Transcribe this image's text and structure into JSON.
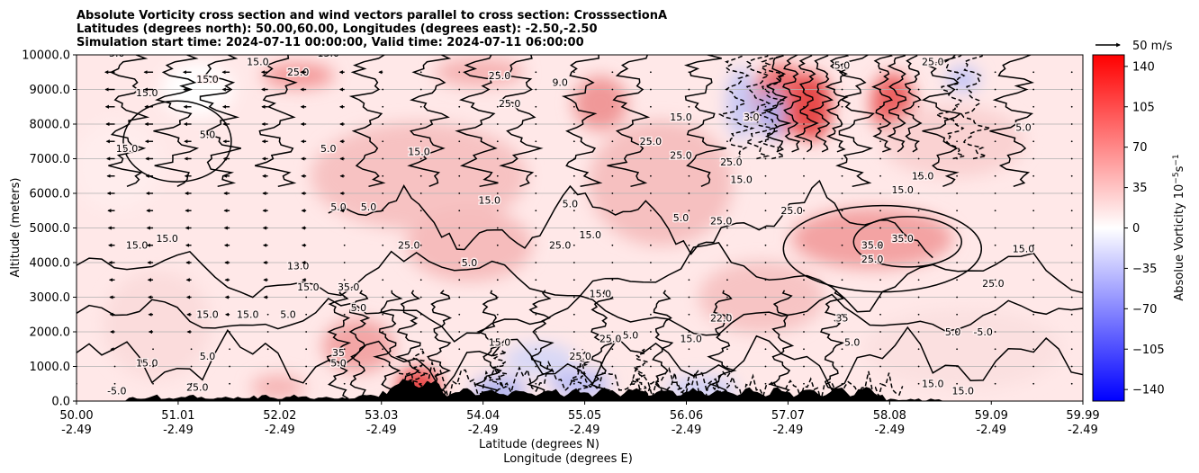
{
  "chart_data": {
    "type": "heatmap",
    "title_lines": [
      "Absolute Vorticity cross section and wind vectors parallel to cross section: CrosssectionA",
      "Latitudes (degrees north): 50.00,60.00, Longitudes (degrees east): -2.50,-2.50",
      "Simulation start time: 2024-07-11 00:00:00, Valid time: 2024-07-11 06:00:00"
    ],
    "xlabel_lines": [
      "Latitude (degrees N)",
      "Longitude (degrees E)"
    ],
    "ylabel": "Altitude (meters)",
    "x_ticks": [
      {
        "lat": "50.00",
        "lon": "-2.49"
      },
      {
        "lat": "51.01",
        "lon": "-2.49"
      },
      {
        "lat": "52.02",
        "lon": "-2.49"
      },
      {
        "lat": "53.03",
        "lon": "-2.49"
      },
      {
        "lat": "54.04",
        "lon": "-2.49"
      },
      {
        "lat": "55.05",
        "lon": "-2.49"
      },
      {
        "lat": "56.06",
        "lon": "-2.49"
      },
      {
        "lat": "57.07",
        "lon": "-2.49"
      },
      {
        "lat": "58.08",
        "lon": "-2.49"
      },
      {
        "lat": "59.09",
        "lon": "-2.49"
      },
      {
        "lat": "59.99",
        "lon": "-2.49"
      }
    ],
    "xlim": [
      50.0,
      59.99
    ],
    "y_ticks": [
      "0.0",
      "1000.0",
      "2000.0",
      "3000.0",
      "4000.0",
      "5000.0",
      "6000.0",
      "7000.0",
      "8000.0",
      "9000.0",
      "10000.0"
    ],
    "ylim": [
      0,
      10000
    ],
    "grid": "horizontal",
    "colorbar": {
      "label": "Absolue Vorticity 10",
      "label_exp": "−5",
      "label_unit": "s",
      "label_unit_exp": "−1",
      "ticks": [
        "140",
        "105",
        "70",
        "35",
        "0",
        "−35",
        "−70",
        "−105",
        "−140"
      ],
      "range": [
        -150,
        150
      ],
      "colors": {
        "low": "#0000ff",
        "mid": "#ffffff",
        "high": "#ff0000"
      }
    },
    "quiver_key": "50 m/s",
    "contour_labels": [
      {
        "text": "5.0",
        "x": 50.4,
        "y": 9950
      },
      {
        "text": "15.0",
        "x": 51.3,
        "y": 9200
      },
      {
        "text": "15.0",
        "x": 51.8,
        "y": 9700
      },
      {
        "text": "25.0",
        "x": 52.2,
        "y": 9400
      },
      {
        "text": "15.0",
        "x": 52.5,
        "y": 9950
      },
      {
        "text": "15.0",
        "x": 50.7,
        "y": 8800
      },
      {
        "text": "5.0",
        "x": 51.3,
        "y": 7600
      },
      {
        "text": "15.0",
        "x": 50.5,
        "y": 7200
      },
      {
        "text": "5.0",
        "x": 52.5,
        "y": 7200
      },
      {
        "text": "15.0",
        "x": 53.4,
        "y": 7100
      },
      {
        "text": "5.0",
        "x": 52.6,
        "y": 5500
      },
      {
        "text": "5.0",
        "x": 52.9,
        "y": 5500
      },
      {
        "text": "15.0",
        "x": 50.6,
        "y": 4400
      },
      {
        "text": "15.0",
        "x": 50.9,
        "y": 4600
      },
      {
        "text": "13.0",
        "x": 52.2,
        "y": 3800
      },
      {
        "text": "15.0",
        "x": 52.3,
        "y": 3200
      },
      {
        "text": "35.0",
        "x": 52.7,
        "y": 3200
      },
      {
        "text": "25.0",
        "x": 53.3,
        "y": 4400
      },
      {
        "text": "5.0",
        "x": 52.8,
        "y": 2600
      },
      {
        "text": "15.0",
        "x": 51.7,
        "y": 2400
      },
      {
        "text": "15.0",
        "x": 51.3,
        "y": 2400
      },
      {
        "text": "5.0",
        "x": 52.1,
        "y": 2400
      },
      {
        "text": "15.0",
        "x": 50.7,
        "y": 1000
      },
      {
        "text": "5.0",
        "x": 51.3,
        "y": 1200
      },
      {
        "text": "5.0",
        "x": 52.6,
        "y": 1000
      },
      {
        "text": "-5.0",
        "x": 50.4,
        "y": 200
      },
      {
        "text": "25.0",
        "x": 51.2,
        "y": 300
      },
      {
        "text": "35",
        "x": 52.6,
        "y": 1300
      },
      {
        "text": "9.0",
        "x": 54.8,
        "y": 9100
      },
      {
        "text": "25.0",
        "x": 54.3,
        "y": 8500
      },
      {
        "text": "25.0",
        "x": 54.2,
        "y": 9300
      },
      {
        "text": "15.0",
        "x": 56.0,
        "y": 8100
      },
      {
        "text": "25.0",
        "x": 56.0,
        "y": 7000
      },
      {
        "text": "15.0",
        "x": 54.1,
        "y": 5700
      },
      {
        "text": "5.0",
        "x": 54.9,
        "y": 5600
      },
      {
        "text": "15.0",
        "x": 55.1,
        "y": 4700
      },
      {
        "text": "25.0",
        "x": 54.8,
        "y": 4400
      },
      {
        "text": "5.0",
        "x": 53.9,
        "y": 3900
      },
      {
        "text": "15.0",
        "x": 55.2,
        "y": 3000
      },
      {
        "text": "5.0",
        "x": 55.5,
        "y": 1800
      },
      {
        "text": "15.0",
        "x": 54.2,
        "y": 1600
      },
      {
        "text": "25.0",
        "x": 55.3,
        "y": 1700
      },
      {
        "text": "25.0",
        "x": 55.0,
        "y": 1200
      },
      {
        "text": "22.0",
        "x": 56.4,
        "y": 2300
      },
      {
        "text": "15.0",
        "x": 56.1,
        "y": 1700
      },
      {
        "text": "5.0",
        "x": 56.0,
        "y": 5200
      },
      {
        "text": "25.0",
        "x": 56.4,
        "y": 5100
      },
      {
        "text": "15.0",
        "x": 56.6,
        "y": 6300
      },
      {
        "text": "25.0",
        "x": 56.5,
        "y": 6800
      },
      {
        "text": "25.0",
        "x": 57.1,
        "y": 5400
      },
      {
        "text": "15.0",
        "x": 58.2,
        "y": 6000
      },
      {
        "text": "35.0",
        "x": 58.2,
        "y": 4600
      },
      {
        "text": "35.0",
        "x": 57.9,
        "y": 4400
      },
      {
        "text": "25.0",
        "x": 57.9,
        "y": 4000
      },
      {
        "text": "15.0",
        "x": 59.4,
        "y": 4300
      },
      {
        "text": "25.0",
        "x": 59.1,
        "y": 3300
      },
      {
        "text": "35",
        "x": 57.6,
        "y": 2300
      },
      {
        "text": "5.0",
        "x": 57.7,
        "y": 1600
      },
      {
        "text": "5.0",
        "x": 58.7,
        "y": 1900
      },
      {
        "text": "-5.0",
        "x": 59.0,
        "y": 1900
      },
      {
        "text": "15.0",
        "x": 58.5,
        "y": 400
      },
      {
        "text": "15.0",
        "x": 58.8,
        "y": 200
      },
      {
        "text": "5.0",
        "x": 59.4,
        "y": 7800
      },
      {
        "text": "15.0",
        "x": 58.4,
        "y": 6400
      },
      {
        "text": "25.0",
        "x": 58.5,
        "y": 9700
      },
      {
        "text": "5.0",
        "x": 57.6,
        "y": 9600
      },
      {
        "text": "3.0",
        "x": 56.7,
        "y": 8100
      },
      {
        "text": "25.0",
        "x": 55.7,
        "y": 7400
      }
    ]
  }
}
